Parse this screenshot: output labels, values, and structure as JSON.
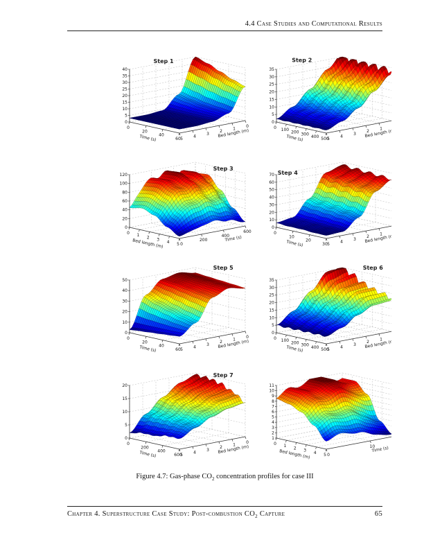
{
  "page": {
    "header": {
      "section": "4.4 Case Studies and Computational Results"
    },
    "caption": {
      "prefix": "Figure 4.7: Gas-phase CO",
      "subscript": "2",
      "suffix": " concentration profiles for case III"
    },
    "footer": {
      "prefix": "Chapter 4. Superstructure Case Study: Post-combustion CO",
      "subscript": "2",
      "suffix": " Capture",
      "page_number": "65"
    }
  },
  "chart_data": [
    {
      "type": "surface",
      "step_label": "Step 1",
      "label_pos": {
        "x": 0.3,
        "y": 0.18
      },
      "z_axis": {
        "lim": [
          0,
          40
        ],
        "ticks": [
          0,
          5,
          10,
          15,
          20,
          25,
          30,
          35,
          40
        ]
      },
      "u_axis": {
        "label": "Time (s)",
        "lim": [
          0,
          60
        ],
        "ticks": [
          0,
          20,
          40,
          60
        ]
      },
      "v_axis": {
        "label": "Bed length (m)",
        "lim": [
          5,
          0
        ],
        "ticks": [
          5,
          4,
          3,
          2,
          1,
          0
        ]
      },
      "surface_grid": [
        [
          3,
          3,
          4,
          14,
          40
        ],
        [
          3,
          3,
          4,
          12,
          37
        ],
        [
          3,
          3,
          4,
          10,
          33
        ],
        [
          3,
          3,
          4,
          9,
          29
        ],
        [
          3,
          3,
          4,
          8,
          26
        ]
      ]
    },
    {
      "type": "surface",
      "step_label": "Step 2",
      "label_pos": {
        "x": 0.24,
        "y": 0.17
      },
      "z_axis": {
        "lim": [
          0,
          35
        ],
        "ticks": [
          0,
          5,
          10,
          15,
          20,
          25,
          30,
          35
        ]
      },
      "u_axis": {
        "label": "Time (s)",
        "lim": [
          0,
          500
        ],
        "ticks": [
          0,
          100,
          200,
          300,
          400,
          500
        ]
      },
      "v_axis": {
        "label": "Bed length (m)",
        "lim": [
          5,
          0
        ],
        "ticks": [
          5,
          4,
          3,
          2,
          1,
          0
        ]
      },
      "ripple": {
        "axis": "u",
        "freq": 5,
        "amp": 0.09
      },
      "surface_grid": [
        [
          2,
          8,
          17,
          27,
          36
        ],
        [
          2,
          7,
          16,
          26,
          34
        ],
        [
          2,
          7,
          15,
          25,
          34
        ],
        [
          2,
          6,
          14,
          24,
          33
        ],
        [
          2,
          6,
          13,
          23,
          33
        ]
      ]
    },
    {
      "type": "surface",
      "step_label": "Step 3",
      "label_pos": {
        "x": 0.72,
        "y": 0.2
      },
      "z_axis": {
        "lim": [
          0,
          120
        ],
        "ticks": [
          0,
          20,
          40,
          60,
          80,
          100,
          120
        ]
      },
      "u_axis": {
        "label": "Bed length (m)",
        "lim": [
          0,
          5
        ],
        "ticks": [
          0,
          1,
          2,
          3,
          4,
          5
        ]
      },
      "v_axis": {
        "label": "Time (s)",
        "lim": [
          0,
          600
        ],
        "ticks": [
          0,
          200,
          400,
          600
        ]
      },
      "ripple": {
        "axis": "v",
        "freq": 4,
        "amp": 0.06
      },
      "surface_grid": [
        [
          45,
          95,
          108,
          102,
          96
        ],
        [
          50,
          98,
          110,
          104,
          98
        ],
        [
          40,
          85,
          98,
          90,
          70
        ],
        [
          20,
          55,
          70,
          62,
          35
        ],
        [
          5,
          15,
          25,
          20,
          10
        ]
      ]
    },
    {
      "type": "surface",
      "step_label": "Step 4",
      "label_pos": {
        "x": 0.14,
        "y": 0.24
      },
      "z_axis": {
        "lim": [
          0,
          70
        ],
        "ticks": [
          0,
          10,
          20,
          30,
          40,
          50,
          60,
          70
        ]
      },
      "u_axis": {
        "label": "Time (s)",
        "lim": [
          0,
          30
        ],
        "ticks": [
          0,
          10,
          20,
          30
        ]
      },
      "v_axis": {
        "label": "Bed length (m)",
        "lim": [
          5,
          0
        ],
        "ticks": [
          5,
          4,
          3,
          2,
          1,
          0
        ]
      },
      "ripple": {
        "axis": "u",
        "freq": 4,
        "amp": 0.03
      },
      "surface_grid": [
        [
          6,
          9,
          30,
          60,
          66
        ],
        [
          5,
          8,
          28,
          58,
          65
        ],
        [
          5,
          7,
          26,
          56,
          64
        ],
        [
          4,
          6,
          23,
          53,
          63
        ],
        [
          4,
          5,
          20,
          50,
          62
        ]
      ]
    },
    {
      "type": "surface",
      "step_label": "Step 5",
      "label_pos": {
        "x": 0.72,
        "y": 0.14
      },
      "z_axis": {
        "lim": [
          0,
          50
        ],
        "ticks": [
          0,
          10,
          20,
          30,
          40,
          50
        ]
      },
      "u_axis": {
        "label": "Time (s)",
        "lim": [
          0,
          60
        ],
        "ticks": [
          0,
          20,
          40,
          60
        ]
      },
      "v_axis": {
        "label": "Bed length (m)",
        "lim": [
          5,
          0
        ],
        "ticks": [
          5,
          4,
          3,
          2,
          1,
          0
        ]
      },
      "surface_grid": [
        [
          3,
          33,
          45,
          48,
          45
        ],
        [
          4,
          28,
          44,
          47,
          44
        ],
        [
          5,
          24,
          42,
          46,
          43
        ],
        [
          6,
          20,
          40,
          45,
          42
        ],
        [
          7,
          17,
          38,
          44,
          41
        ]
      ]
    },
    {
      "type": "surface",
      "step_label": "Step 6",
      "label_pos": {
        "x": 0.74,
        "y": 0.14
      },
      "z_axis": {
        "lim": [
          0,
          35
        ],
        "ticks": [
          0,
          5,
          10,
          15,
          20,
          25,
          30,
          35
        ]
      },
      "u_axis": {
        "label": "Time (s)",
        "lim": [
          0,
          500
        ],
        "ticks": [
          0,
          100,
          200,
          300,
          400,
          500
        ]
      },
      "v_axis": {
        "label": "Bed length (m)",
        "lim": [
          5,
          0
        ],
        "ticks": [
          5,
          4,
          3,
          2,
          1,
          0
        ]
      },
      "ripple": {
        "axis": "u",
        "freq": 5,
        "amp": 0.1
      },
      "surface_grid": [
        [
          5,
          12,
          22,
          32,
          36
        ],
        [
          5,
          11,
          20,
          28,
          30
        ],
        [
          5,
          10,
          18,
          25,
          26
        ],
        [
          5,
          10,
          17,
          23,
          23
        ],
        [
          5,
          9,
          16,
          21,
          22
        ]
      ]
    },
    {
      "type": "surface",
      "step_label": "Step 7",
      "label_pos": {
        "x": 0.72,
        "y": 0.16
      },
      "z_axis": {
        "lim": [
          0,
          20
        ],
        "ticks": [
          0,
          5,
          10,
          15,
          20
        ]
      },
      "u_axis": {
        "label": "Time (s)",
        "lim": [
          0,
          600
        ],
        "ticks": [
          0,
          200,
          400,
          600
        ]
      },
      "v_axis": {
        "label": "Bed length (m)",
        "lim": [
          5,
          0
        ],
        "ticks": [
          5,
          4,
          3,
          2,
          1,
          0
        ]
      },
      "ripple": {
        "axis": "u",
        "freq": 6,
        "amp": 0.04
      },
      "surface_grid": [
        [
          2,
          8,
          13,
          17,
          19
        ],
        [
          3,
          9,
          14,
          17,
          19
        ],
        [
          3,
          9,
          13,
          16,
          18
        ],
        [
          4,
          8,
          12,
          15,
          16
        ],
        [
          4,
          7,
          10,
          12,
          13
        ]
      ]
    },
    {
      "type": "surface",
      "step_label": "",
      "label_pos": {
        "x": 0.75,
        "y": 0.15
      },
      "z_axis": {
        "lim": [
          1,
          11
        ],
        "ticks": [
          1,
          2,
          3,
          4,
          5,
          6,
          7,
          8,
          9,
          10,
          11
        ]
      },
      "u_axis": {
        "label": "Bed length (m)",
        "lim": [
          0,
          5
        ],
        "ticks": [
          0,
          1,
          2,
          3,
          4,
          5
        ]
      },
      "v_axis": {
        "label": "Time (s)",
        "lim": [
          0,
          15
        ],
        "ticks": [
          0,
          10
        ]
      },
      "ripple": {
        "axis": "v",
        "freq": 2,
        "amp": 0.05
      },
      "surface_grid": [
        [
          8.5,
          10,
          11,
          10.5,
          10
        ],
        [
          8,
          10,
          11,
          10.5,
          10
        ],
        [
          7,
          9,
          10,
          9,
          8
        ],
        [
          5,
          6.5,
          6.5,
          5,
          3.5
        ],
        [
          2.5,
          3.5,
          3,
          2,
          1.5
        ]
      ]
    }
  ]
}
